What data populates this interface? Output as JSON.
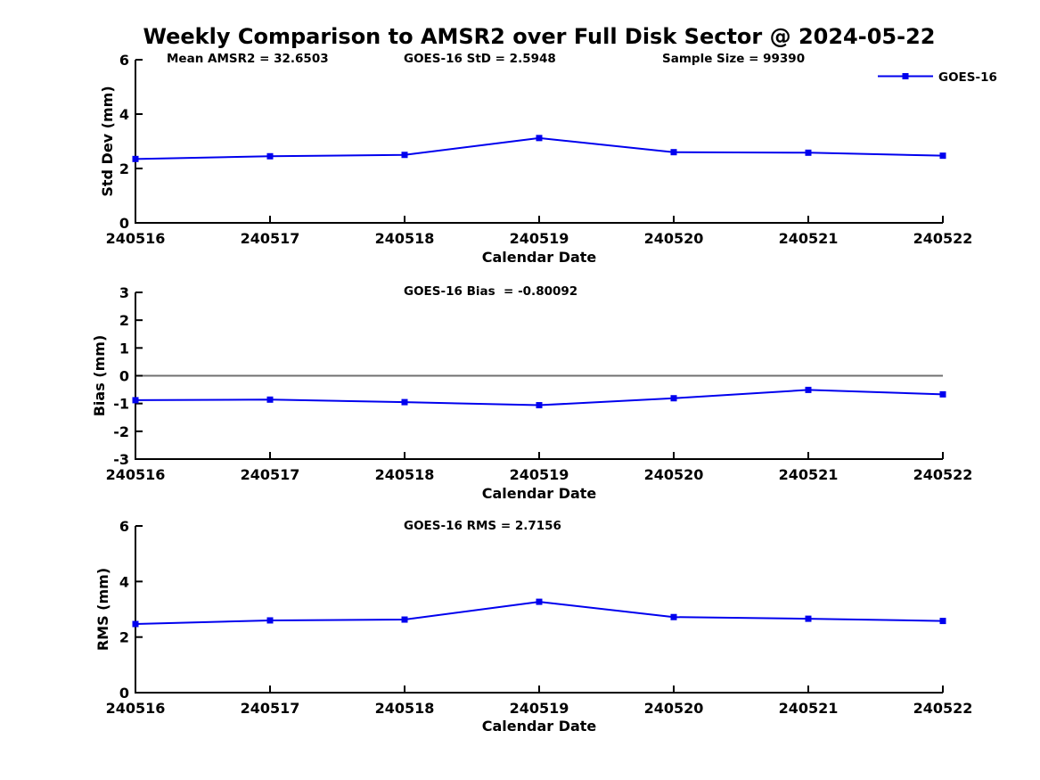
{
  "title": "Weekly Comparison to AMSR2 over Full Disk Sector @ 2024-05-22",
  "colors": {
    "series": "#0000EE",
    "zero_line": "#707070",
    "axis": "#000000",
    "text": "#000000",
    "background": "#FFFFFF"
  },
  "legend": {
    "label": "GOES-16",
    "position": "top-right",
    "marker": "square"
  },
  "chart_data": [
    {
      "type": "line",
      "x": [
        "240516",
        "240517",
        "240518",
        "240519",
        "240520",
        "240521",
        "240522"
      ],
      "series": [
        {
          "name": "GOES-16",
          "values": [
            2.35,
            2.45,
            2.5,
            3.12,
            2.6,
            2.58,
            2.47
          ],
          "color": "#0000EE",
          "marker": "square"
        }
      ],
      "xlabel": "Calendar Date",
      "ylabel": "Std Dev (mm)",
      "ylim": [
        0,
        6
      ],
      "yticks": [
        0,
        2,
        4,
        6
      ],
      "grid": false,
      "zero_line": false,
      "show_legend": true,
      "annotations": [
        "Mean AMSR2 = 32.6503",
        "GOES-16 StD = 2.5948",
        "Sample Size = 99390"
      ]
    },
    {
      "type": "line",
      "x": [
        "240516",
        "240517",
        "240518",
        "240519",
        "240520",
        "240521",
        "240522"
      ],
      "series": [
        {
          "name": "GOES-16",
          "values": [
            -0.88,
            -0.86,
            -0.95,
            -1.06,
            -0.81,
            -0.51,
            -0.67
          ],
          "color": "#0000EE",
          "marker": "square"
        }
      ],
      "xlabel": "Calendar Date",
      "ylabel": "Bias (mm)",
      "ylim": [
        -3,
        3
      ],
      "yticks": [
        -3,
        -2,
        -1,
        0,
        1,
        2,
        3
      ],
      "grid": false,
      "zero_line": true,
      "show_legend": false,
      "annotations": [
        "GOES-16 Bias  = -0.80092"
      ]
    },
    {
      "type": "line",
      "x": [
        "240516",
        "240517",
        "240518",
        "240519",
        "240520",
        "240521",
        "240522"
      ],
      "series": [
        {
          "name": "GOES-16",
          "values": [
            2.47,
            2.6,
            2.63,
            3.27,
            2.72,
            2.66,
            2.58
          ],
          "color": "#0000EE",
          "marker": "square"
        }
      ],
      "xlabel": "Calendar Date",
      "ylabel": "RMS (mm)",
      "ylim": [
        0,
        6
      ],
      "yticks": [
        0,
        2,
        4,
        6
      ],
      "grid": false,
      "zero_line": false,
      "show_legend": false,
      "annotations": [
        "GOES-16 RMS = 2.7156"
      ]
    }
  ]
}
